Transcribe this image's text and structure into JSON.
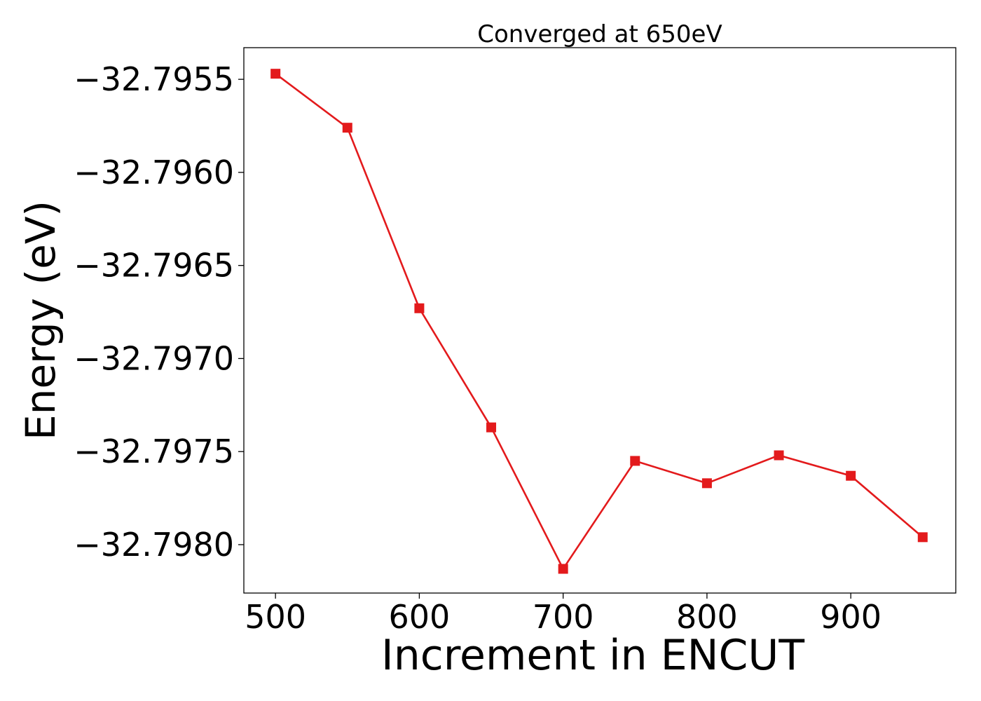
{
  "chart_data": {
    "type": "line",
    "title": "Converged at 650eV",
    "xlabel": "Increment in ENCUT",
    "ylabel": "Energy (eV)",
    "x": [
      500,
      550,
      600,
      650,
      700,
      750,
      800,
      850,
      900,
      950
    ],
    "series": [
      {
        "values": [
          -32.79547,
          -32.79576,
          -32.79673,
          -32.79737,
          -32.79813,
          -32.79755,
          -32.79767,
          -32.79752,
          -32.79763,
          -32.79796
        ],
        "color": "#e31a1c",
        "marker": "square"
      }
    ],
    "xlim": [
      478,
      973
    ],
    "ylim": [
      -32.79826,
      -32.79533
    ],
    "xticks": [
      500,
      600,
      700,
      800,
      900
    ],
    "xtick_labels": [
      "500",
      "600",
      "700",
      "800",
      "900"
    ],
    "yticks": [
      -32.7955,
      -32.796,
      -32.7965,
      -32.797,
      -32.7975,
      -32.798
    ],
    "ytick_labels": [
      "−32.7955",
      "−32.7960",
      "−32.7965",
      "−32.7970",
      "−32.7975",
      "−32.7980"
    ],
    "grid": false,
    "legend": "none"
  }
}
